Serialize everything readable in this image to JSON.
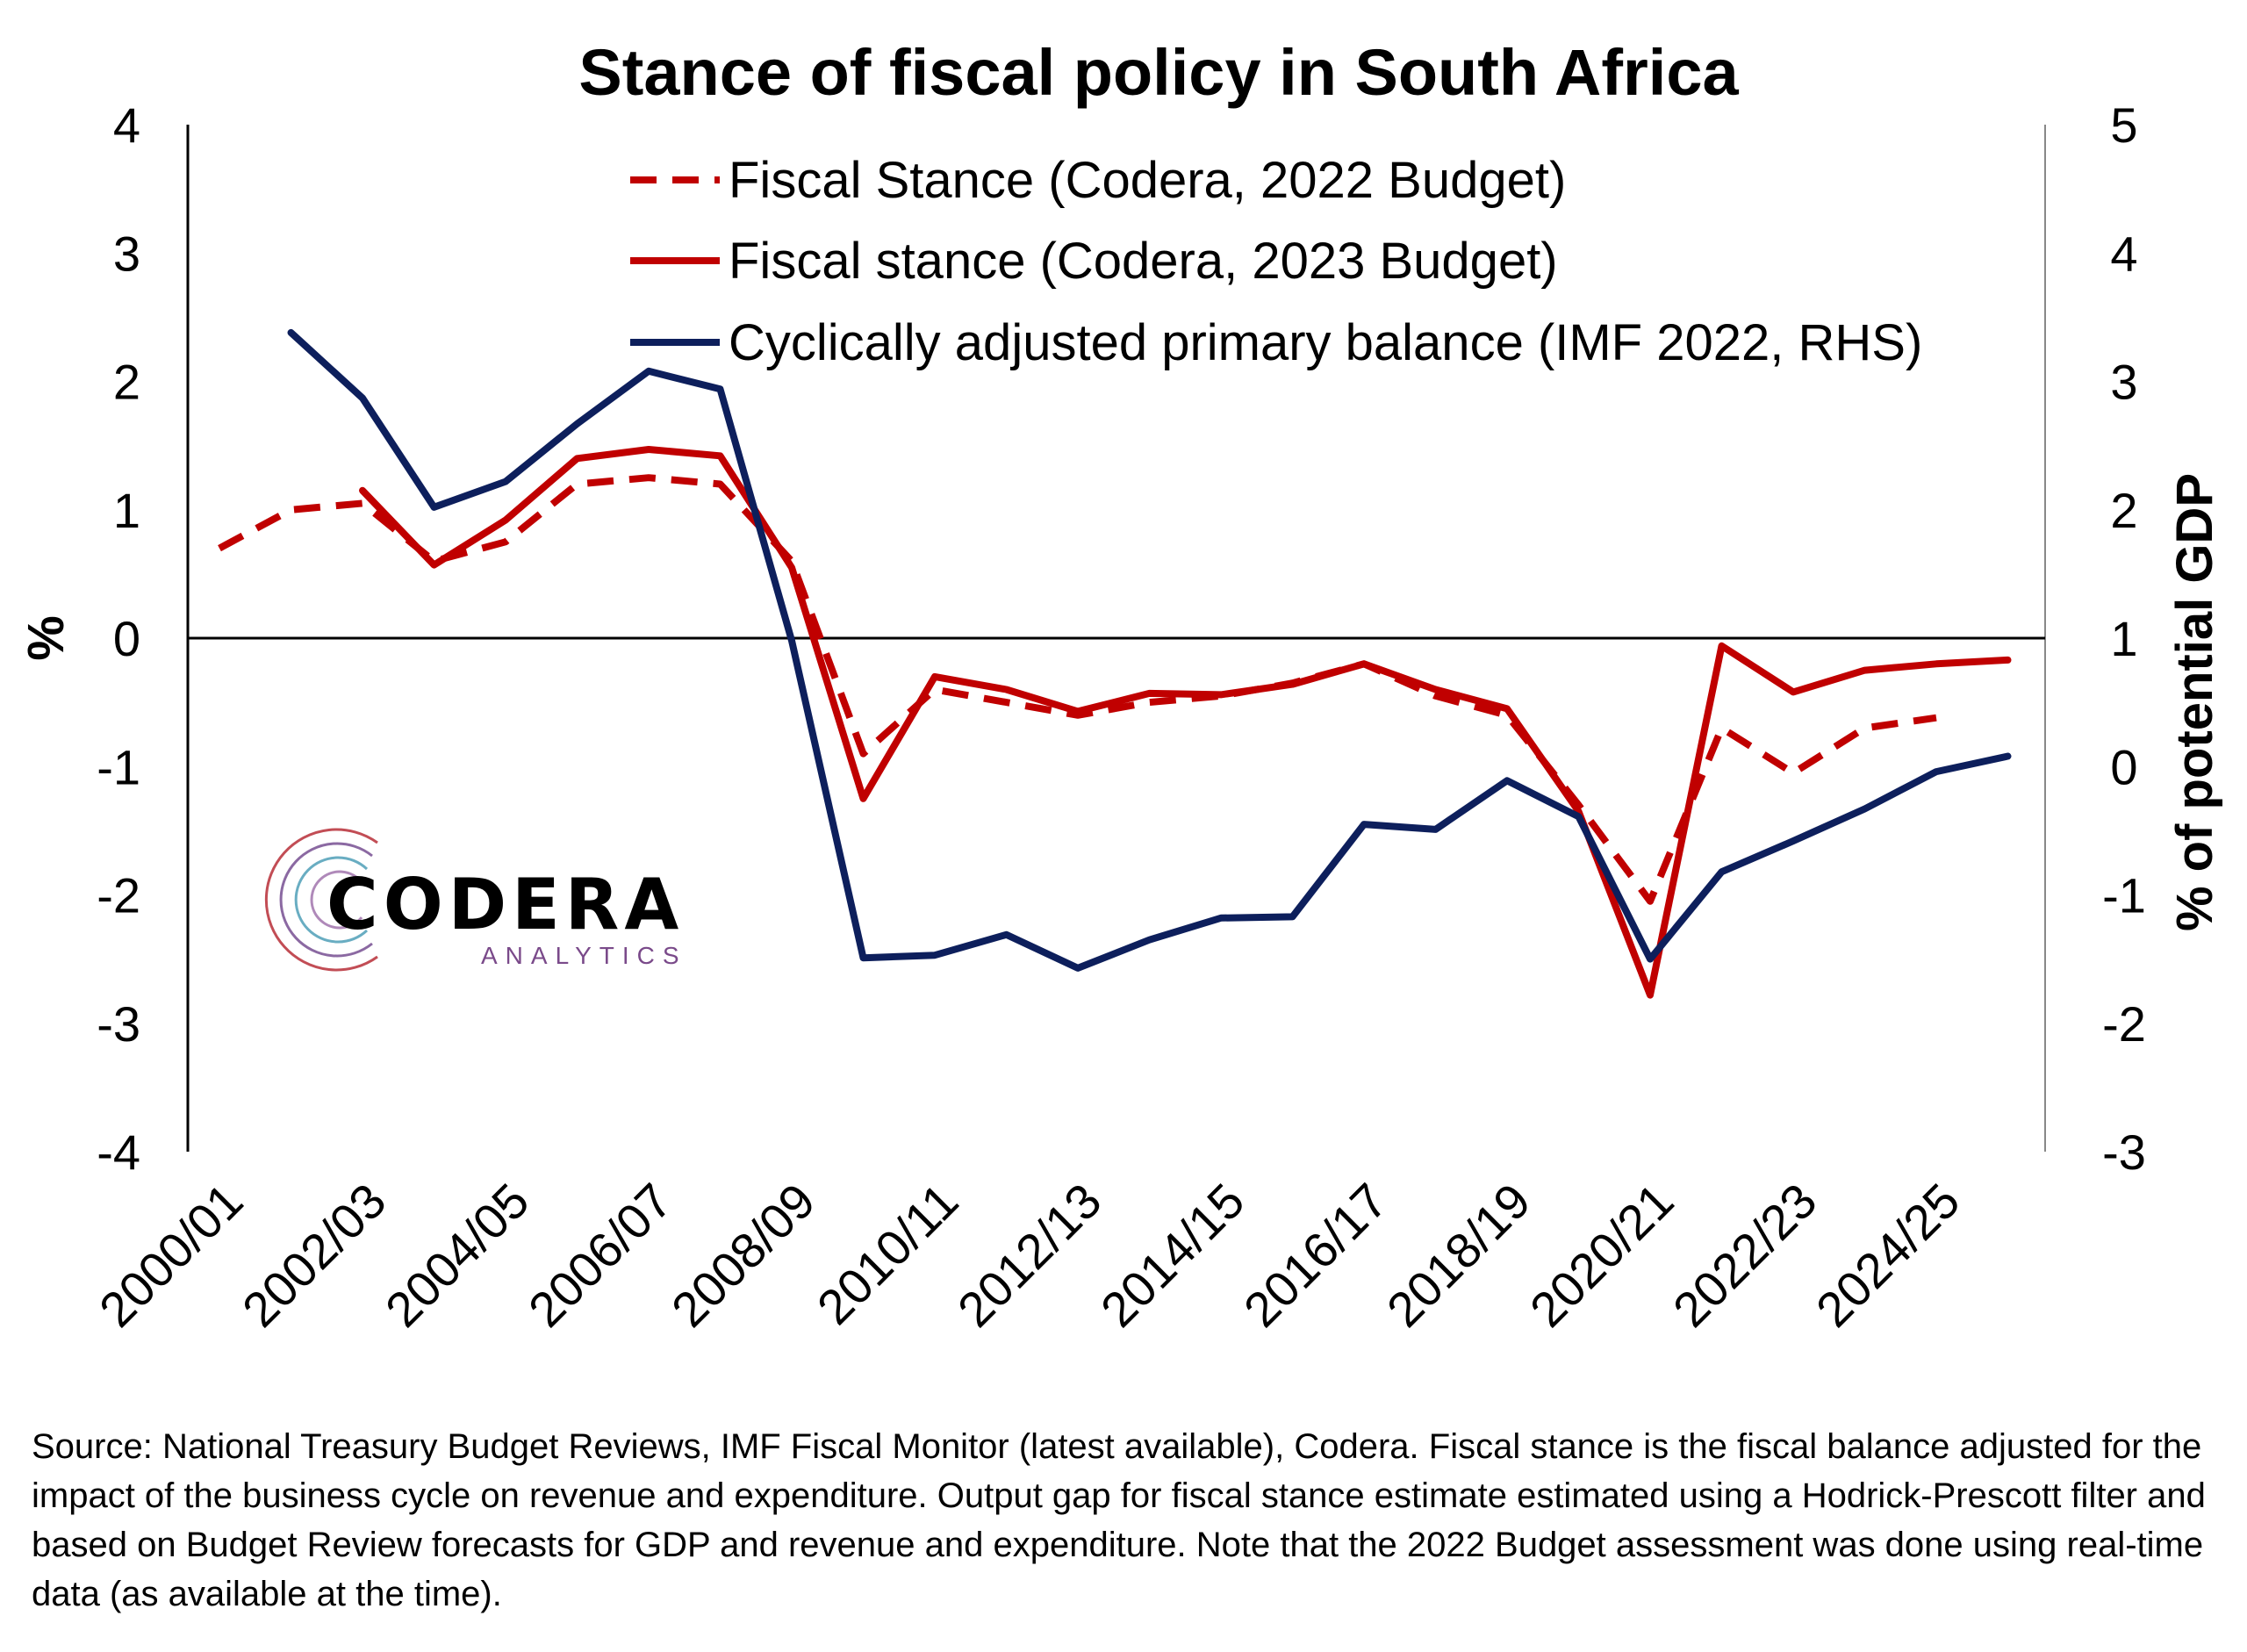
{
  "chart_data": {
    "type": "line",
    "title": "Stance of fiscal policy in South Africa",
    "ylabel": "%",
    "y2label": "% of potential GDP",
    "ylim": [
      -4,
      4
    ],
    "y2lim": [
      -3,
      5
    ],
    "yticks": [
      "4",
      "3",
      "2",
      "1",
      "0",
      "-1",
      "-2",
      "-3",
      "-4"
    ],
    "y2ticks": [
      "5",
      "4",
      "3",
      "2",
      "1",
      "0",
      "-1",
      "-2",
      "-3"
    ],
    "categories": [
      "2000/01",
      "2001/02",
      "2002/03",
      "2003/04",
      "2004/05",
      "2005/06",
      "2006/07",
      "2007/08",
      "2008/09",
      "2009/10",
      "2010/11",
      "2011/12",
      "2012/13",
      "2013/14",
      "2014/15",
      "2015/16",
      "2016/17",
      "2017/18",
      "2018/19",
      "2019/20",
      "2020/21",
      "2021/22",
      "2022/23",
      "2023/24",
      "2024/25",
      "2025/26"
    ],
    "xtick_labels": [
      "2000/01",
      "2002/03",
      "2004/05",
      "2006/07",
      "2008/09",
      "2010/11",
      "2012/13",
      "2014/15",
      "2016/17",
      "2018/19",
      "2020/21",
      "2022/23",
      "2024/25"
    ],
    "legend_position": "top",
    "series": [
      {
        "name": "Fiscal Stance (Codera, 2022 Budget)",
        "color": "#c00000",
        "style": "dashed",
        "axis": "left",
        "values": [
          0.7,
          1.0,
          1.05,
          0.6,
          0.75,
          1.2,
          1.25,
          1.2,
          0.6,
          -0.9,
          -0.4,
          -0.5,
          -0.6,
          -0.5,
          -0.45,
          -0.35,
          -0.2,
          -0.45,
          -0.6,
          -1.3,
          -2.05,
          -0.7,
          -1.05,
          -0.7,
          -0.62,
          null
        ]
      },
      {
        "name": "Fiscal stance (Codera, 2023 Budget)",
        "color": "#c00000",
        "style": "solid",
        "axis": "left",
        "values": [
          null,
          null,
          1.15,
          0.57,
          0.92,
          1.4,
          1.47,
          1.42,
          0.55,
          -1.25,
          -0.3,
          -0.4,
          -0.57,
          -0.43,
          -0.44,
          -0.36,
          -0.2,
          -0.4,
          -0.55,
          -1.35,
          -2.78,
          -0.06,
          -0.42,
          -0.25,
          -0.2,
          -0.17
        ]
      },
      {
        "name": "Cyclically adjusted primary balance (IMF 2022, RHS)",
        "color": "#0d1f5c",
        "style": "solid",
        "axis": "right",
        "values": [
          null,
          3.38,
          2.87,
          2.02,
          2.22,
          2.67,
          3.08,
          2.94,
          0.98,
          -1.49,
          -1.47,
          -1.31,
          -1.57,
          -1.35,
          -1.18,
          -1.17,
          -0.45,
          -0.49,
          -0.11,
          -0.39,
          -1.5,
          -0.82,
          -0.58,
          -0.33,
          -0.04,
          0.08
        ]
      }
    ]
  },
  "logo": {
    "name": "CODERA",
    "sub": "ANALYTICS"
  },
  "source_note": "Source: National Treasury Budget Reviews, IMF Fiscal Monitor (latest available), Codera. Fiscal stance is the fiscal balance adjusted for the impact of the business cycle on revenue and expenditure. Output gap for fiscal stance estimate estimated using a Hodrick-Prescott filter and based on Budget Review forecasts for GDP and revenue and expenditure. Note that the 2022 Budget assessment was done using real-time data (as available at the time)."
}
